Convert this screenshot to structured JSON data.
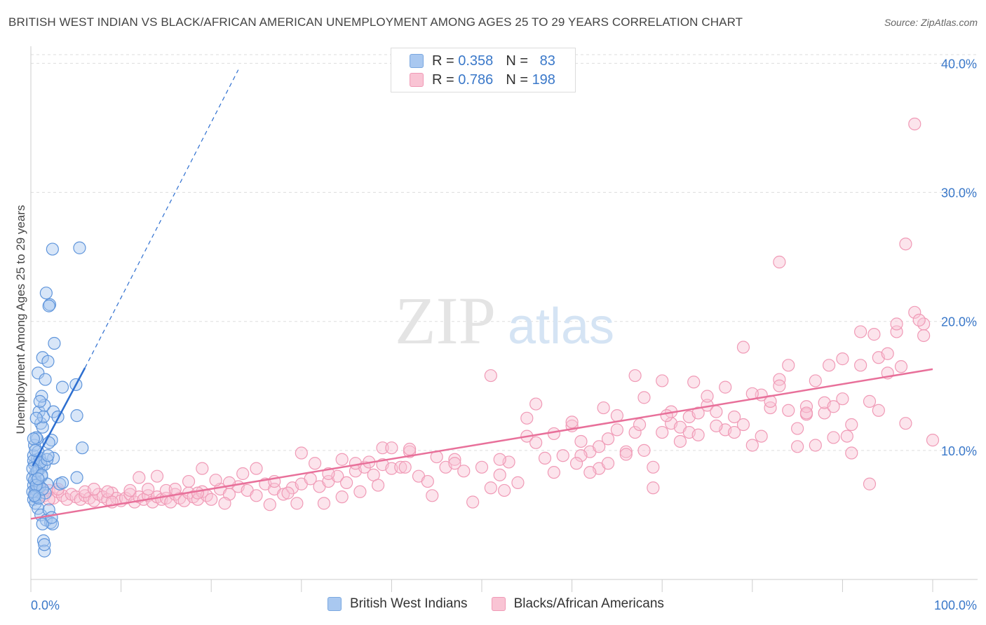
{
  "header": {
    "title": "BRITISH WEST INDIAN VS BLACK/AFRICAN AMERICAN UNEMPLOYMENT AMONG AGES 25 TO 29 YEARS CORRELATION CHART",
    "source": "Source: ZipAtlas.com"
  },
  "watermark": {
    "zip": "ZIP",
    "atlas": "atlas"
  },
  "legend": {
    "rows": [
      {
        "r_label": "R =",
        "r_value": "0.358",
        "n_label": "N =",
        "n_value": "83",
        "color": "#a9c8f0",
        "border": "#7aa8e0"
      },
      {
        "r_label": "R =",
        "r_value": "0.786",
        "n_label": "N =",
        "n_value": "198",
        "color": "#f9c4d4",
        "border": "#f09ab6"
      }
    ]
  },
  "bottom_legend": {
    "items": [
      {
        "label": "British West Indians",
        "color": "#a9c8f0",
        "border": "#7aa8e0"
      },
      {
        "label": "Blacks/African Americans",
        "color": "#f9c4d4",
        "border": "#f09ab6"
      }
    ]
  },
  "chart_data": {
    "type": "scatter",
    "title": "BRITISH WEST INDIAN VS BLACK/AFRICAN AMERICAN UNEMPLOYMENT AMONG AGES 25 TO 29 YEARS CORRELATION CHART",
    "xlabel": "",
    "ylabel": "Unemployment Among Ages 25 to 29 years",
    "xlim": [
      0,
      100
    ],
    "ylim": [
      0,
      41
    ],
    "x_tick_labels": [
      "0.0%",
      "100.0%"
    ],
    "y_ticks": [
      10,
      20,
      30,
      40
    ],
    "y_tick_labels": [
      "10.0%",
      "20.0%",
      "30.0%",
      "40.0%"
    ],
    "grid": true,
    "legend_position": "top-center",
    "colors": {
      "blue": "#4a86d8",
      "blue_line": "#2e6fd0",
      "pink": "#f08fb0",
      "pink_line": "#e8709a",
      "tick_text": "#3a78c9"
    },
    "series": [
      {
        "name": "British West Indians",
        "r": 0.358,
        "n": 83,
        "trend": {
          "x0": 0.2,
          "y0": 8.8,
          "x1": 6.0,
          "y1": 16.4,
          "dash_x1": 23.0,
          "dash_y1": 39.5
        },
        "points": [
          [
            0.3,
            7.3
          ],
          [
            0.4,
            6.6
          ],
          [
            0.5,
            7.0
          ],
          [
            0.3,
            6.2
          ],
          [
            0.6,
            7.6
          ],
          [
            0.5,
            8.2
          ],
          [
            0.4,
            8.9
          ],
          [
            0.7,
            9.3
          ],
          [
            0.2,
            7.9
          ],
          [
            0.6,
            6.9
          ],
          [
            0.8,
            7.1
          ],
          [
            0.5,
            6.4
          ],
          [
            0.3,
            9.6
          ],
          [
            0.9,
            8.5
          ],
          [
            0.4,
            10.4
          ],
          [
            0.7,
            10.9
          ],
          [
            0.6,
            11.0
          ],
          [
            1.0,
            9.4
          ],
          [
            1.2,
            8.8
          ],
          [
            0.8,
            9.9
          ],
          [
            1.1,
            12.1
          ],
          [
            1.3,
            11.8
          ],
          [
            0.9,
            13.0
          ],
          [
            1.5,
            13.5
          ],
          [
            1.2,
            14.2
          ],
          [
            1.0,
            13.8
          ],
          [
            1.4,
            12.6
          ],
          [
            0.6,
            12.5
          ],
          [
            0.8,
            16.0
          ],
          [
            1.3,
            17.2
          ],
          [
            1.6,
            15.5
          ],
          [
            1.9,
            16.9
          ],
          [
            2.1,
            21.3
          ],
          [
            1.7,
            22.2
          ],
          [
            2.0,
            21.2
          ],
          [
            2.4,
            25.6
          ],
          [
            5.4,
            25.7
          ],
          [
            2.6,
            18.3
          ],
          [
            3.5,
            14.9
          ],
          [
            5.0,
            15.1
          ],
          [
            2.5,
            13.0
          ],
          [
            3.0,
            12.6
          ],
          [
            5.1,
            12.7
          ],
          [
            2.3,
            10.8
          ],
          [
            2.0,
            10.6
          ],
          [
            5.7,
            10.2
          ],
          [
            2.5,
            9.4
          ],
          [
            1.5,
            8.9
          ],
          [
            1.2,
            8.0
          ],
          [
            1.8,
            7.4
          ],
          [
            3.2,
            7.4
          ],
          [
            5.1,
            7.9
          ],
          [
            3.5,
            7.5
          ],
          [
            0.5,
            5.9
          ],
          [
            0.8,
            5.5
          ],
          [
            1.1,
            5.0
          ],
          [
            1.7,
            4.6
          ],
          [
            2.2,
            4.4
          ],
          [
            2.4,
            4.3
          ],
          [
            1.3,
            4.3
          ],
          [
            2.0,
            5.4
          ],
          [
            2.3,
            4.8
          ],
          [
            1.4,
            3.0
          ],
          [
            1.5,
            2.2
          ],
          [
            1.5,
            2.7
          ],
          [
            0.2,
            6.8
          ],
          [
            0.4,
            7.7
          ],
          [
            0.3,
            9.2
          ],
          [
            0.7,
            8.4
          ],
          [
            1.0,
            7.2
          ],
          [
            1.6,
            6.7
          ],
          [
            0.9,
            6.3
          ],
          [
            1.3,
            7.0
          ],
          [
            0.5,
            10.0
          ],
          [
            1.1,
            9.1
          ],
          [
            1.8,
            9.3
          ],
          [
            0.2,
            8.6
          ],
          [
            0.6,
            7.3
          ],
          [
            0.4,
            6.5
          ],
          [
            1.9,
            9.6
          ],
          [
            1.2,
            8.1
          ],
          [
            0.8,
            7.8
          ],
          [
            0.3,
            10.9
          ]
        ]
      },
      {
        "name": "Blacks/African Americans",
        "r": 0.786,
        "n": 198,
        "trend": {
          "x0": 0,
          "y0": 4.7,
          "x1": 100,
          "y1": 16.3
        },
        "points": [
          [
            0.5,
            6.8
          ],
          [
            1.0,
            7.1
          ],
          [
            1.5,
            6.5
          ],
          [
            2.0,
            6.9
          ],
          [
            2.5,
            6.3
          ],
          [
            3.0,
            6.8
          ],
          [
            3.5,
            6.5
          ],
          [
            4.0,
            6.2
          ],
          [
            4.5,
            6.6
          ],
          [
            5.0,
            6.4
          ],
          [
            5.5,
            6.2
          ],
          [
            6.0,
            6.5
          ],
          [
            6.5,
            6.3
          ],
          [
            7.0,
            6.1
          ],
          [
            7.5,
            6.6
          ],
          [
            8.0,
            6.4
          ],
          [
            8.5,
            6.2
          ],
          [
            9.0,
            6.7
          ],
          [
            9.5,
            6.3
          ],
          [
            10.0,
            6.1
          ],
          [
            10.5,
            6.3
          ],
          [
            11.0,
            6.6
          ],
          [
            11.5,
            6.0
          ],
          [
            12.0,
            6.4
          ],
          [
            12.5,
            6.2
          ],
          [
            13.0,
            6.5
          ],
          [
            13.5,
            6.0
          ],
          [
            14.0,
            6.4
          ],
          [
            14.5,
            6.2
          ],
          [
            15.0,
            6.3
          ],
          [
            15.5,
            6.0
          ],
          [
            16.0,
            6.6
          ],
          [
            16.5,
            6.3
          ],
          [
            17.0,
            6.1
          ],
          [
            17.5,
            6.7
          ],
          [
            18.0,
            6.4
          ],
          [
            18.5,
            6.2
          ],
          [
            19.0,
            6.8
          ],
          [
            19.5,
            6.5
          ],
          [
            20.0,
            6.2
          ],
          [
            21.0,
            7.0
          ],
          [
            22.0,
            6.6
          ],
          [
            23.0,
            7.2
          ],
          [
            24.0,
            6.9
          ],
          [
            25.0,
            6.5
          ],
          [
            26.0,
            7.4
          ],
          [
            27.0,
            7.0
          ],
          [
            28.0,
            6.6
          ],
          [
            29.0,
            7.1
          ],
          [
            30.0,
            7.4
          ],
          [
            31.0,
            7.8
          ],
          [
            32.0,
            7.2
          ],
          [
            33.0,
            7.6
          ],
          [
            34.0,
            8.0
          ],
          [
            35.0,
            7.5
          ],
          [
            36.0,
            8.4
          ],
          [
            37.0,
            8.7
          ],
          [
            38.0,
            8.1
          ],
          [
            39.0,
            8.9
          ],
          [
            40.0,
            8.6
          ],
          [
            2.0,
            6.2
          ],
          [
            3.0,
            7.0
          ],
          [
            6.0,
            6.8
          ],
          [
            7.0,
            7.0
          ],
          [
            8.5,
            6.8
          ],
          [
            9.0,
            6.0
          ],
          [
            11.0,
            6.9
          ],
          [
            12.0,
            7.9
          ],
          [
            13.0,
            7.0
          ],
          [
            14.0,
            8.0
          ],
          [
            15.0,
            6.9
          ],
          [
            16.0,
            7.0
          ],
          [
            17.5,
            7.6
          ],
          [
            19.0,
            8.6
          ],
          [
            20.5,
            7.7
          ],
          [
            22.0,
            7.5
          ],
          [
            23.5,
            8.2
          ],
          [
            25.0,
            8.6
          ],
          [
            27.0,
            7.6
          ],
          [
            28.5,
            6.7
          ],
          [
            30.0,
            9.8
          ],
          [
            31.5,
            9.0
          ],
          [
            33.0,
            8.2
          ],
          [
            34.5,
            9.3
          ],
          [
            36.0,
            9.0
          ],
          [
            37.5,
            9.1
          ],
          [
            39.0,
            10.2
          ],
          [
            40.0,
            10.2
          ],
          [
            41.0,
            8.7
          ],
          [
            42.0,
            9.9
          ],
          [
            43.0,
            8.0
          ],
          [
            44.0,
            7.6
          ],
          [
            45.0,
            9.5
          ],
          [
            46.0,
            8.7
          ],
          [
            47.0,
            9.3
          ],
          [
            48.0,
            8.4
          ],
          [
            49.0,
            6.0
          ],
          [
            50.0,
            8.7
          ],
          [
            51.0,
            7.1
          ],
          [
            52.0,
            8.1
          ],
          [
            53.0,
            9.1
          ],
          [
            54.0,
            7.5
          ],
          [
            55.0,
            11.1
          ],
          [
            56.0,
            10.6
          ],
          [
            57.0,
            9.4
          ],
          [
            58.0,
            8.3
          ],
          [
            59.0,
            9.6
          ],
          [
            60.0,
            11.9
          ],
          [
            61.0,
            10.7
          ],
          [
            62.0,
            9.9
          ],
          [
            63.0,
            8.6
          ],
          [
            64.0,
            10.9
          ],
          [
            65.0,
            11.6
          ],
          [
            66.0,
            9.9
          ],
          [
            67.0,
            11.4
          ],
          [
            68.0,
            10.0
          ],
          [
            69.0,
            8.7
          ],
          [
            70.0,
            11.4
          ],
          [
            71.0,
            12.1
          ],
          [
            72.0,
            11.8
          ],
          [
            73.0,
            12.6
          ],
          [
            74.0,
            12.9
          ],
          [
            75.0,
            13.5
          ],
          [
            76.0,
            13.0
          ],
          [
            77.0,
            11.6
          ],
          [
            78.0,
            11.4
          ],
          [
            79.0,
            12.0
          ],
          [
            80.0,
            10.4
          ],
          [
            81.0,
            14.3
          ],
          [
            82.0,
            13.3
          ],
          [
            83.0,
            15.5
          ],
          [
            84.0,
            13.1
          ],
          [
            85.0,
            11.7
          ],
          [
            86.0,
            12.8
          ],
          [
            87.0,
            10.4
          ],
          [
            88.0,
            12.9
          ],
          [
            89.0,
            11.0
          ],
          [
            90.0,
            14.0
          ],
          [
            91.0,
            9.8
          ],
          [
            92.0,
            16.6
          ],
          [
            93.0,
            13.8
          ],
          [
            94.0,
            17.2
          ],
          [
            95.0,
            16.0
          ],
          [
            96.0,
            19.2
          ],
          [
            97.0,
            12.1
          ],
          [
            98.0,
            20.7
          ],
          [
            99.0,
            19.8
          ],
          [
            100.0,
            10.8
          ],
          [
            51.0,
            15.8
          ],
          [
            55.0,
            12.5
          ],
          [
            58.0,
            11.3
          ],
          [
            61.0,
            9.6
          ],
          [
            64.0,
            9.0
          ],
          [
            67.0,
            15.8
          ],
          [
            70.0,
            15.4
          ],
          [
            73.0,
            11.4
          ],
          [
            76.0,
            11.9
          ],
          [
            79.0,
            18.0
          ],
          [
            82.0,
            13.8
          ],
          [
            84.0,
            16.6
          ],
          [
            86.0,
            13.4
          ],
          [
            88.0,
            13.7
          ],
          [
            90.0,
            17.1
          ],
          [
            92.0,
            19.2
          ],
          [
            94.0,
            13.1
          ],
          [
            96.0,
            19.8
          ],
          [
            98.0,
            35.3
          ],
          [
            97.0,
            26.0
          ],
          [
            83.0,
            24.6
          ],
          [
            42.0,
            10.1
          ],
          [
            47.0,
            9.0
          ],
          [
            52.0,
            9.3
          ],
          [
            60.0,
            12.2
          ],
          [
            63.0,
            10.3
          ],
          [
            66.0,
            9.7
          ],
          [
            69.0,
            7.1
          ],
          [
            72.0,
            10.7
          ],
          [
            75.0,
            14.2
          ],
          [
            78.0,
            12.6
          ],
          [
            81.0,
            11.1
          ],
          [
            85.0,
            10.3
          ],
          [
            87.0,
            15.4
          ],
          [
            89.0,
            13.4
          ],
          [
            91.0,
            12.0
          ],
          [
            93.0,
            7.4
          ],
          [
            95.0,
            17.5
          ],
          [
            99.0,
            18.9
          ],
          [
            52.5,
            6.9
          ],
          [
            44.5,
            6.5
          ],
          [
            36.5,
            6.8
          ],
          [
            32.5,
            5.9
          ],
          [
            26.5,
            5.8
          ],
          [
            21.5,
            5.9
          ],
          [
            18.5,
            6.7
          ],
          [
            29.5,
            5.9
          ],
          [
            34.5,
            6.4
          ],
          [
            38.5,
            7.3
          ],
          [
            41.5,
            8.7
          ],
          [
            56.0,
            13.6
          ],
          [
            62.0,
            8.3
          ],
          [
            65.0,
            12.7
          ],
          [
            68.0,
            14.1
          ],
          [
            71.0,
            13.0
          ],
          [
            74.0,
            11.2
          ],
          [
            77.0,
            14.9
          ],
          [
            80.0,
            14.4
          ],
          [
            83.0,
            15.0
          ],
          [
            86.0,
            12.9
          ],
          [
            88.5,
            16.6
          ],
          [
            90.5,
            11.1
          ],
          [
            93.5,
            19.0
          ],
          [
            96.5,
            16.5
          ],
          [
            98.5,
            20.1
          ],
          [
            60.5,
            9.0
          ],
          [
            63.5,
            13.3
          ],
          [
            67.5,
            12.0
          ],
          [
            70.5,
            12.7
          ],
          [
            73.5,
            15.3
          ]
        ]
      }
    ]
  }
}
